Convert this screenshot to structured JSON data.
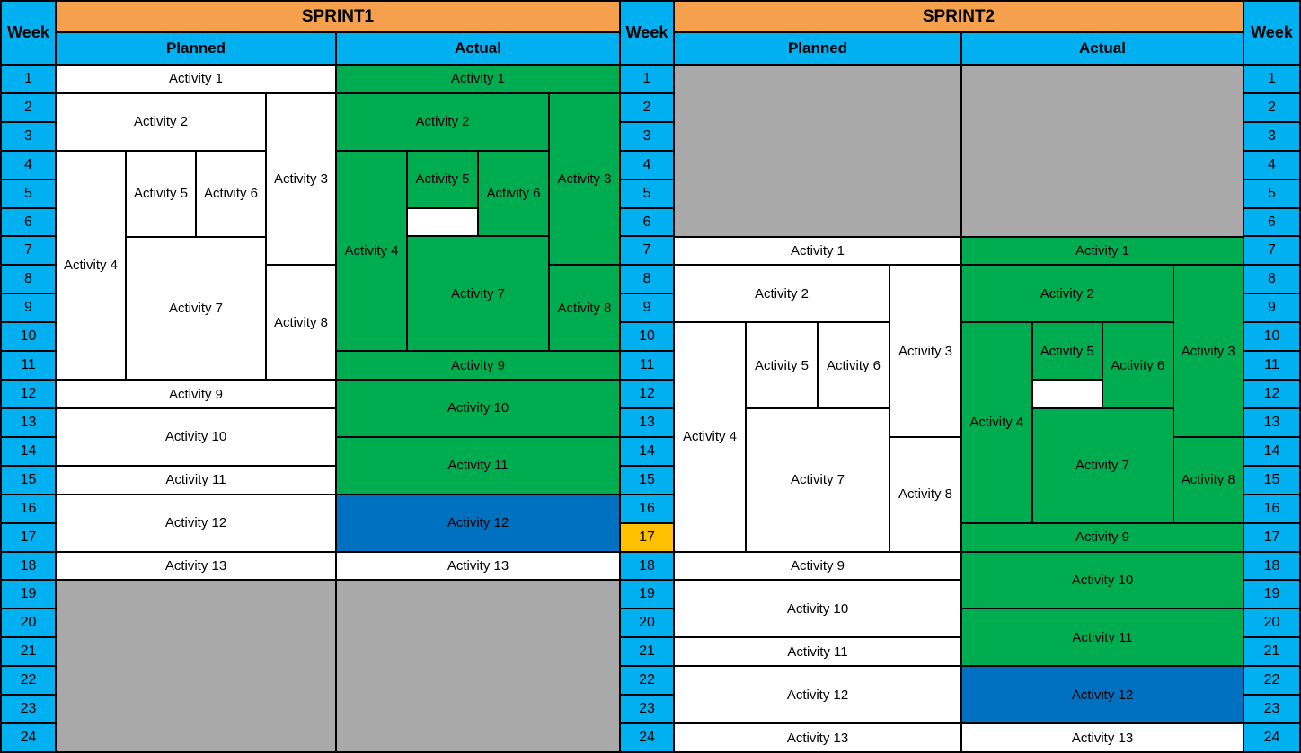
{
  "labels": {
    "week": "Week",
    "planned": "Planned",
    "actual": "Actual"
  },
  "colors": {
    "sprint_header": "#F4A04C",
    "week_band": "#00B0F0",
    "current_week_highlight": "#FFC000",
    "completed": "#00AC50",
    "in_progress": "#0070C0",
    "not_started": "#FFFFFF",
    "out_of_sprint": "#A9A9A9"
  },
  "weeks_total": 24,
  "current_week": 17,
  "week_numbers": [
    1,
    2,
    3,
    4,
    5,
    6,
    7,
    8,
    9,
    10,
    11,
    12,
    13,
    14,
    15,
    16,
    17,
    18,
    19,
    20,
    21,
    22,
    23,
    24
  ],
  "chart_data": {
    "type": "table",
    "title": "Sprint planned vs actual activity schedule (Gantt)",
    "weeks": 24,
    "current_week": 17,
    "legend": {
      "completed": "green",
      "in_progress": "blue",
      "planned_or_not_started": "white",
      "out_of_sprint": "gray"
    },
    "sprints": [
      {
        "name": "SPRINT1",
        "planned": [
          {
            "label": "Activity 1",
            "fill": "not_started",
            "week_start": 1,
            "week_end": 1,
            "col_start": 1,
            "col_end": 4
          },
          {
            "label": "Activity 2",
            "fill": "not_started",
            "week_start": 2,
            "week_end": 3,
            "col_start": 1,
            "col_end": 3
          },
          {
            "label": "Activity 3",
            "fill": "not_started",
            "week_start": 2,
            "week_end": 7,
            "col_start": 4,
            "col_end": 4
          },
          {
            "label": "Activity 4",
            "fill": "not_started",
            "week_start": 4,
            "week_end": 11,
            "col_start": 1,
            "col_end": 1
          },
          {
            "label": "Activity 5",
            "fill": "not_started",
            "week_start": 4,
            "week_end": 6,
            "col_start": 2,
            "col_end": 2
          },
          {
            "label": "Activity 6",
            "fill": "not_started",
            "week_start": 4,
            "week_end": 6,
            "col_start": 3,
            "col_end": 3
          },
          {
            "label": "Activity 7",
            "fill": "not_started",
            "week_start": 7,
            "week_end": 11,
            "col_start": 2,
            "col_end": 3
          },
          {
            "label": "Activity 8",
            "fill": "not_started",
            "week_start": 8,
            "week_end": 11,
            "col_start": 4,
            "col_end": 4
          },
          {
            "label": "Activity 9",
            "fill": "not_started",
            "week_start": 12,
            "week_end": 12,
            "col_start": 1,
            "col_end": 4
          },
          {
            "label": "Activity 10",
            "fill": "not_started",
            "week_start": 13,
            "week_end": 14,
            "col_start": 1,
            "col_end": 4
          },
          {
            "label": "Activity 11",
            "fill": "not_started",
            "week_start": 15,
            "week_end": 15,
            "col_start": 1,
            "col_end": 4
          },
          {
            "label": "Activity 12",
            "fill": "not_started",
            "week_start": 16,
            "week_end": 17,
            "col_start": 1,
            "col_end": 4
          },
          {
            "label": "Activity 13",
            "fill": "not_started",
            "week_start": 18,
            "week_end": 18,
            "col_start": 1,
            "col_end": 4
          },
          {
            "label": "",
            "fill": "out_of_sprint",
            "week_start": 19,
            "week_end": 24,
            "col_start": 1,
            "col_end": 4
          }
        ],
        "actual": [
          {
            "label": "Activity 1",
            "fill": "completed",
            "week_start": 1,
            "week_end": 1,
            "col_start": 1,
            "col_end": 4
          },
          {
            "label": "Activity 2",
            "fill": "completed",
            "week_start": 2,
            "week_end": 3,
            "col_start": 1,
            "col_end": 3
          },
          {
            "label": "Activity 3",
            "fill": "completed",
            "week_start": 2,
            "week_end": 7,
            "col_start": 4,
            "col_end": 4
          },
          {
            "label": "Activity 4",
            "fill": "completed",
            "week_start": 4,
            "week_end": 10,
            "col_start": 1,
            "col_end": 1
          },
          {
            "label": "Activity 5",
            "fill": "completed",
            "week_start": 4,
            "week_end": 5,
            "col_start": 2,
            "col_end": 2
          },
          {
            "label": "",
            "fill": "not_started",
            "week_start": 6,
            "week_end": 6,
            "col_start": 2,
            "col_end": 2
          },
          {
            "label": "Activity 6",
            "fill": "completed",
            "week_start": 4,
            "week_end": 6,
            "col_start": 3,
            "col_end": 3
          },
          {
            "label": "Activity 7",
            "fill": "completed",
            "week_start": 7,
            "week_end": 10,
            "col_start": 2,
            "col_end": 3
          },
          {
            "label": "Activity 8",
            "fill": "completed",
            "week_start": 8,
            "week_end": 10,
            "col_start": 4,
            "col_end": 4
          },
          {
            "label": "Activity 9",
            "fill": "completed",
            "week_start": 11,
            "week_end": 11,
            "col_start": 1,
            "col_end": 4
          },
          {
            "label": "Activity 10",
            "fill": "completed",
            "week_start": 12,
            "week_end": 13,
            "col_start": 1,
            "col_end": 4
          },
          {
            "label": "Activity 11",
            "fill": "completed",
            "week_start": 14,
            "week_end": 15,
            "col_start": 1,
            "col_end": 4
          },
          {
            "label": "Activity 12",
            "fill": "in_progress",
            "week_start": 16,
            "week_end": 17,
            "col_start": 1,
            "col_end": 4
          },
          {
            "label": "Activity 13",
            "fill": "not_started",
            "week_start": 18,
            "week_end": 18,
            "col_start": 1,
            "col_end": 4
          },
          {
            "label": "",
            "fill": "out_of_sprint",
            "week_start": 19,
            "week_end": 24,
            "col_start": 1,
            "col_end": 4
          }
        ]
      },
      {
        "name": "SPRINT2",
        "planned": [
          {
            "label": "",
            "fill": "out_of_sprint",
            "week_start": 1,
            "week_end": 6,
            "col_start": 1,
            "col_end": 4
          },
          {
            "label": "Activity 1",
            "fill": "not_started",
            "week_start": 7,
            "week_end": 7,
            "col_start": 1,
            "col_end": 4
          },
          {
            "label": "Activity 2",
            "fill": "not_started",
            "week_start": 8,
            "week_end": 9,
            "col_start": 1,
            "col_end": 3
          },
          {
            "label": "Activity 3",
            "fill": "not_started",
            "week_start": 8,
            "week_end": 13,
            "col_start": 4,
            "col_end": 4
          },
          {
            "label": "Activity 4",
            "fill": "not_started",
            "week_start": 10,
            "week_end": 17,
            "col_start": 1,
            "col_end": 1
          },
          {
            "label": "Activity 5",
            "fill": "not_started",
            "week_start": 10,
            "week_end": 12,
            "col_start": 2,
            "col_end": 2
          },
          {
            "label": "Activity 6",
            "fill": "not_started",
            "week_start": 10,
            "week_end": 12,
            "col_start": 3,
            "col_end": 3
          },
          {
            "label": "Activity 7",
            "fill": "not_started",
            "week_start": 13,
            "week_end": 17,
            "col_start": 2,
            "col_end": 3
          },
          {
            "label": "Activity 8",
            "fill": "not_started",
            "week_start": 14,
            "week_end": 17,
            "col_start": 4,
            "col_end": 4
          },
          {
            "label": "Activity 9",
            "fill": "not_started",
            "week_start": 18,
            "week_end": 18,
            "col_start": 1,
            "col_end": 4
          },
          {
            "label": "Activity 10",
            "fill": "not_started",
            "week_start": 19,
            "week_end": 20,
            "col_start": 1,
            "col_end": 4
          },
          {
            "label": "Activity 11",
            "fill": "not_started",
            "week_start": 21,
            "week_end": 21,
            "col_start": 1,
            "col_end": 4
          },
          {
            "label": "Activity 12",
            "fill": "not_started",
            "week_start": 22,
            "week_end": 23,
            "col_start": 1,
            "col_end": 4
          },
          {
            "label": "Activity 13",
            "fill": "not_started",
            "week_start": 24,
            "week_end": 24,
            "col_start": 1,
            "col_end": 4
          }
        ],
        "actual": [
          {
            "label": "",
            "fill": "out_of_sprint",
            "week_start": 1,
            "week_end": 6,
            "col_start": 1,
            "col_end": 4
          },
          {
            "label": "Activity 1",
            "fill": "completed",
            "week_start": 7,
            "week_end": 7,
            "col_start": 1,
            "col_end": 4
          },
          {
            "label": "Activity 2",
            "fill": "completed",
            "week_start": 8,
            "week_end": 9,
            "col_start": 1,
            "col_end": 3
          },
          {
            "label": "Activity 3",
            "fill": "completed",
            "week_start": 8,
            "week_end": 13,
            "col_start": 4,
            "col_end": 4
          },
          {
            "label": "Activity 4",
            "fill": "completed",
            "week_start": 10,
            "week_end": 16,
            "col_start": 1,
            "col_end": 1
          },
          {
            "label": "Activity 5",
            "fill": "completed",
            "week_start": 10,
            "week_end": 11,
            "col_start": 2,
            "col_end": 2
          },
          {
            "label": "",
            "fill": "not_started",
            "week_start": 12,
            "week_end": 12,
            "col_start": 2,
            "col_end": 2
          },
          {
            "label": "Activity 6",
            "fill": "completed",
            "week_start": 10,
            "week_end": 12,
            "col_start": 3,
            "col_end": 3
          },
          {
            "label": "Activity 7",
            "fill": "completed",
            "week_start": 13,
            "week_end": 16,
            "col_start": 2,
            "col_end": 3
          },
          {
            "label": "Activity 8",
            "fill": "completed",
            "week_start": 14,
            "week_end": 16,
            "col_start": 4,
            "col_end": 4
          },
          {
            "label": "Activity 9",
            "fill": "completed",
            "week_start": 17,
            "week_end": 17,
            "col_start": 1,
            "col_end": 4
          },
          {
            "label": "Activity 10",
            "fill": "completed",
            "week_start": 18,
            "week_end": 19,
            "col_start": 1,
            "col_end": 4
          },
          {
            "label": "Activity 11",
            "fill": "completed",
            "week_start": 20,
            "week_end": 21,
            "col_start": 1,
            "col_end": 4
          },
          {
            "label": "Activity 12",
            "fill": "in_progress",
            "week_start": 22,
            "week_end": 23,
            "col_start": 1,
            "col_end": 4
          },
          {
            "label": "Activity 13",
            "fill": "not_started",
            "week_start": 24,
            "week_end": 24,
            "col_start": 1,
            "col_end": 4
          }
        ]
      }
    ]
  }
}
